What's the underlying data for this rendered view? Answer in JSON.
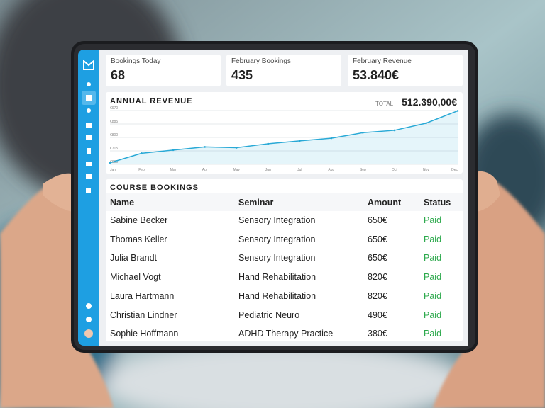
{
  "stats": [
    {
      "label": "Bookings Today",
      "value": "68"
    },
    {
      "label": "February Bookings",
      "value": "435"
    },
    {
      "label": "February Revenue",
      "value": "53.840€"
    }
  ],
  "chart_data": {
    "type": "line",
    "title": "ANNUAL REVENUE",
    "total_label": "TOTAL",
    "total": "512.390,00€",
    "categories": [
      "Jan",
      "Feb",
      "Mar",
      "Apr",
      "May",
      "Jun",
      "Jul",
      "Aug",
      "Sep",
      "Oct",
      "Nov",
      "Dec"
    ],
    "series": [
      {
        "name": "Revenue",
        "color": "#29a9d6",
        "values": [
          640,
          700,
          720,
          740,
          735,
          760,
          778,
          795,
          830,
          845,
          890,
          968
        ]
      }
    ],
    "ylim": [
      630,
      970
    ],
    "yticks": [
      {
        "value": 630,
        "label": "€630"
      },
      {
        "value": 715,
        "label": "€715"
      },
      {
        "value": 800,
        "label": "€800"
      },
      {
        "value": 885,
        "label": "€885"
      },
      {
        "value": 970,
        "label": "€970"
      }
    ],
    "grid": true
  },
  "table": {
    "title": "COURSE BOOKINGS",
    "columns": [
      "Name",
      "Seminar",
      "Amount",
      "Status"
    ],
    "rows": [
      [
        "Sabine Becker",
        "Sensory Integration",
        "650€",
        "Paid"
      ],
      [
        "Thomas Keller",
        "Sensory Integration",
        "650€",
        "Paid"
      ],
      [
        "Julia Brandt",
        "Sensory Integration",
        "650€",
        "Paid"
      ],
      [
        "Michael Vogt",
        "Hand Rehabilitation",
        "820€",
        "Paid"
      ],
      [
        "Laura Hartmann",
        "Hand Rehabilitation",
        "820€",
        "Paid"
      ],
      [
        "Christian Lindner",
        "Pediatric Neuro",
        "490€",
        "Paid"
      ],
      [
        "Sophie Hoffmann",
        "ADHD Therapy Practice",
        "380€",
        "Paid"
      ]
    ]
  }
}
